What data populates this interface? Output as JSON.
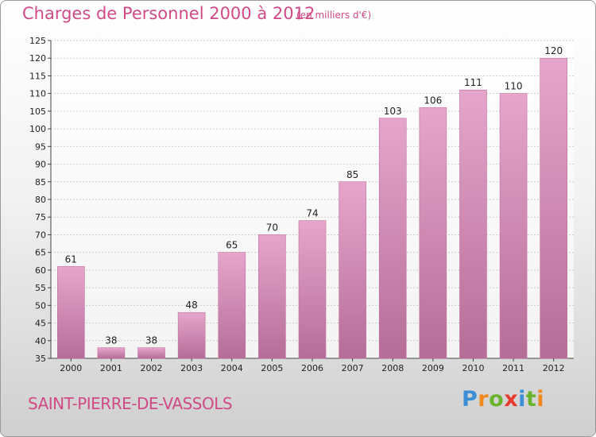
{
  "header": {
    "title": "Charges de Personnel 2000 à 2012",
    "subtitle": "(en milliers d'€)"
  },
  "footer": {
    "commune": "SAINT-PIERRE-DE-VASSOLS",
    "logo_letters": [
      "P",
      "r",
      "o",
      "x",
      "i",
      "t",
      "i"
    ],
    "logo_colors": [
      "#3b8fd6",
      "#f08a1e",
      "#6ab42d",
      "#e63b2e",
      "#3b8fd6",
      "#6ab42d",
      "#f08a1e"
    ]
  },
  "chart_data": {
    "type": "bar",
    "categories": [
      "2000",
      "2001",
      "2002",
      "2003",
      "2004",
      "2005",
      "2006",
      "2007",
      "2008",
      "2009",
      "2010",
      "2011",
      "2012"
    ],
    "values": [
      61,
      38,
      38,
      48,
      65,
      70,
      74,
      85,
      103,
      106,
      111,
      110,
      120
    ],
    "data_labels": [
      "61",
      "38",
      "38",
      "48",
      "65",
      "70",
      "74",
      "85",
      "103",
      "106",
      "111",
      "110",
      "120"
    ],
    "ylim": [
      35,
      125
    ],
    "yticks": [
      35,
      40,
      45,
      50,
      55,
      60,
      65,
      70,
      75,
      80,
      85,
      90,
      95,
      100,
      105,
      110,
      115,
      120,
      125
    ],
    "grid": true,
    "bar_color": "#d67aa8"
  }
}
